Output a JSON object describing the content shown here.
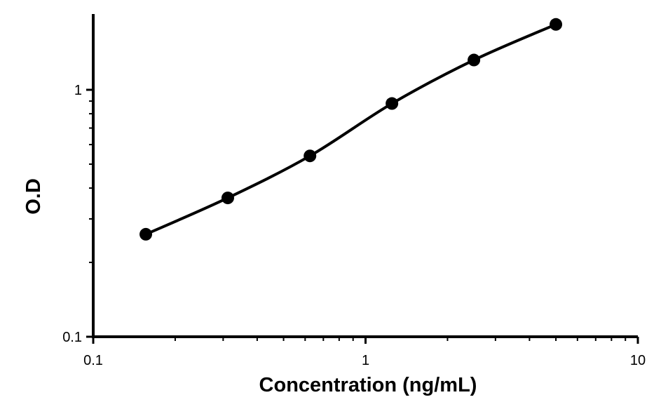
{
  "chart_data": {
    "type": "line",
    "title": "",
    "xlabel": "Concentration  (ng/mL)",
    "ylabel": "O.D",
    "x_scale": "log",
    "y_scale": "log",
    "xlim": [
      0.1,
      10
    ],
    "ylim": [
      0.1,
      1.9
    ],
    "x_ticks": [
      0.1,
      1,
      10
    ],
    "x_tick_labels": [
      "0.1",
      "1",
      "10"
    ],
    "y_ticks": [
      0.1,
      1
    ],
    "y_tick_labels": [
      "0.1",
      "1"
    ],
    "grid": false,
    "legend": "none",
    "line_color": "#000000",
    "marker": "filled-circle",
    "series": [
      {
        "x": [
          0.156,
          0.312,
          0.625,
          1.25,
          2.5,
          5.0
        ],
        "y": [
          0.26,
          0.365,
          0.54,
          0.88,
          1.32,
          1.84
        ]
      }
    ]
  }
}
